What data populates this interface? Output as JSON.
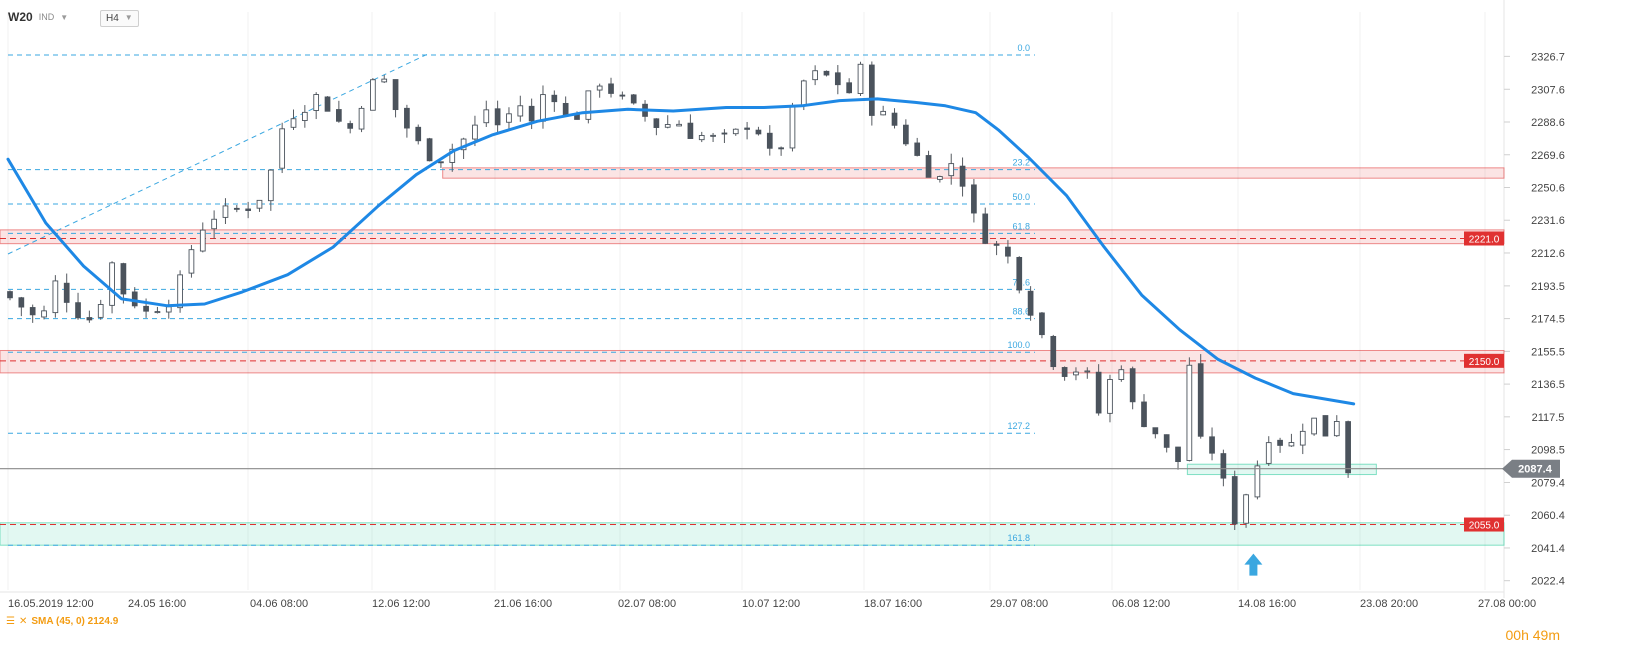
{
  "header": {
    "symbol": "W20",
    "index_tag": "IND",
    "timeframe": "H4"
  },
  "price_axis": {
    "ticks": [
      "2326.7",
      "2307.6",
      "2288.6",
      "2269.6",
      "2250.6",
      "2231.6",
      "2212.6",
      "2193.5",
      "2174.5",
      "2155.5",
      "2136.5",
      "2117.5",
      "2098.5",
      "2079.4",
      "2060.4",
      "2041.4",
      "2022.4"
    ]
  },
  "time_axis": {
    "labels": [
      "16.05.2019  12:00",
      "24.05  16:00",
      "04.06  08:00",
      "12.06  12:00",
      "21.06  16:00",
      "02.07  08:00",
      "10.07  12:00",
      "18.07  16:00",
      "29.07  08:00",
      "06.08  12:00",
      "14.08  16:00",
      "23.08  20:00",
      "27.08  00:00"
    ]
  },
  "fibonacci": {
    "levels": [
      {
        "label": "0.0",
        "price": 2327.5
      },
      {
        "label": "23.2",
        "price": 2261.0
      },
      {
        "label": "50.0",
        "price": 2241.0
      },
      {
        "label": "61.8",
        "price": 2224.0
      },
      {
        "label": "78.6",
        "price": 2191.5
      },
      {
        "label": "88.6",
        "price": 2174.5
      },
      {
        "label": "100.0",
        "price": 2155.0
      },
      {
        "label": "127.2",
        "price": 2108.0
      },
      {
        "label": "161.8",
        "price": 2043.0
      }
    ]
  },
  "key_levels": [
    {
      "label": "2221.0",
      "price": 2221.0,
      "color": "#e03131"
    },
    {
      "label": "2150.0",
      "price": 2150.0,
      "color": "#e03131"
    },
    {
      "label": "2055.0",
      "price": 2055.0,
      "color": "#e03131"
    }
  ],
  "current_price": {
    "label": "2087.4",
    "value": 2087.4
  },
  "indicator": {
    "legend": "SMA (45, 0) 2124.9"
  },
  "timer": {
    "hours": "00",
    "h": "h",
    "minutes": "49",
    "m": "m"
  },
  "chart_data": {
    "type": "candlestick",
    "title": "",
    "ylim": [
      2017,
      2342
    ],
    "x": [
      "16.05.2019 12:00",
      "24.05 16:00",
      "04.06 08:00",
      "12.06 12:00",
      "21.06 16:00",
      "02.07 08:00",
      "10.07 12:00",
      "18.07 16:00",
      "29.07 08:00",
      "06.08 12:00",
      "14.08 16:00",
      "23.08 20:00",
      "27.08 00:00"
    ],
    "close_path": [
      [
        0,
        2190
      ],
      [
        6,
        2180
      ],
      [
        10,
        2172
      ],
      [
        14,
        2195
      ],
      [
        20,
        2178
      ],
      [
        25,
        2172
      ],
      [
        28,
        2212
      ],
      [
        32,
        2190
      ],
      [
        38,
        2178
      ],
      [
        44,
        2185
      ],
      [
        48,
        2200
      ],
      [
        50,
        2215
      ],
      [
        54,
        2232
      ],
      [
        58,
        2236
      ],
      [
        62,
        2238
      ],
      [
        66,
        2240
      ],
      [
        70,
        2250
      ],
      [
        72,
        2270
      ],
      [
        74,
        2285
      ],
      [
        76,
        2292
      ],
      [
        80,
        2298
      ],
      [
        84,
        2305
      ],
      [
        88,
        2290
      ],
      [
        92,
        2285
      ],
      [
        95,
        2300
      ],
      [
        100,
        2318
      ],
      [
        104,
        2296
      ],
      [
        108,
        2282
      ],
      [
        112,
        2270
      ],
      [
        116,
        2268
      ],
      [
        120,
        2275
      ],
      [
        124,
        2282
      ],
      [
        128,
        2296
      ],
      [
        132,
        2284
      ],
      [
        136,
        2302
      ],
      [
        140,
        2288
      ],
      [
        144,
        2310
      ],
      [
        148,
        2298
      ],
      [
        150,
        2285
      ],
      [
        154,
        2300
      ],
      [
        158,
        2312
      ],
      [
        162,
        2305
      ],
      [
        166,
        2298
      ],
      [
        170,
        2292
      ],
      [
        174,
        2285
      ],
      [
        178,
        2290
      ],
      [
        182,
        2282
      ],
      [
        186,
        2280
      ],
      [
        190,
        2278
      ],
      [
        194,
        2282
      ],
      [
        198,
        2289
      ],
      [
        202,
        2278
      ],
      [
        204,
        2262
      ],
      [
        208,
        2288
      ],
      [
        212,
        2312
      ],
      [
        214,
        2316
      ],
      [
        218,
        2315
      ],
      [
        222,
        2310
      ],
      [
        224,
        2306
      ],
      [
        226,
        2316
      ],
      [
        228,
        2322
      ],
      [
        230,
        2296
      ],
      [
        234,
        2291
      ],
      [
        236,
        2287
      ],
      [
        240,
        2275
      ],
      [
        244,
        2262
      ],
      [
        248,
        2256
      ],
      [
        252,
        2268
      ],
      [
        256,
        2240
      ],
      [
        258,
        2226
      ],
      [
        262,
        2218
      ],
      [
        266,
        2210
      ],
      [
        268,
        2200
      ],
      [
        272,
        2180
      ],
      [
        276,
        2160
      ],
      [
        278,
        2150
      ],
      [
        282,
        2142
      ],
      [
        286,
        2148
      ],
      [
        290,
        2120
      ],
      [
        292,
        2135
      ],
      [
        296,
        2148
      ],
      [
        298,
        2130
      ],
      [
        300,
        2118
      ],
      [
        304,
        2112
      ],
      [
        308,
        2098
      ],
      [
        312,
        2090
      ],
      [
        314,
        2148
      ],
      [
        316,
        2095
      ],
      [
        318,
        2110
      ],
      [
        320,
        2098
      ],
      [
        322,
        2088
      ],
      [
        324,
        2070
      ],
      [
        326,
        2058
      ],
      [
        328,
        2068
      ],
      [
        332,
        2090
      ],
      [
        334,
        2105
      ],
      [
        336,
        2108
      ],
      [
        340,
        2098
      ],
      [
        344,
        2112
      ],
      [
        346,
        2118
      ],
      [
        350,
        2108
      ],
      [
        352,
        2122
      ],
      [
        354,
        2112
      ],
      [
        356,
        2087
      ]
    ],
    "sma": {
      "name": "SMA (45, 0)",
      "points": [
        [
          0,
          2267
        ],
        [
          10,
          2230
        ],
        [
          20,
          2205
        ],
        [
          30,
          2186
        ],
        [
          42,
          2182
        ],
        [
          52,
          2183
        ],
        [
          62,
          2190
        ],
        [
          74,
          2200
        ],
        [
          86,
          2216
        ],
        [
          98,
          2240
        ],
        [
          108,
          2258
        ],
        [
          118,
          2272
        ],
        [
          128,
          2281
        ],
        [
          140,
          2289
        ],
        [
          152,
          2294
        ],
        [
          164,
          2296
        ],
        [
          176,
          2295
        ],
        [
          190,
          2297
        ],
        [
          200,
          2297
        ],
        [
          210,
          2298
        ],
        [
          220,
          2301
        ],
        [
          230,
          2302
        ],
        [
          240,
          2300
        ],
        [
          248,
          2298
        ],
        [
          256,
          2294
        ],
        [
          262,
          2284
        ],
        [
          270,
          2268
        ],
        [
          280,
          2246
        ],
        [
          290,
          2216
        ],
        [
          300,
          2188
        ],
        [
          310,
          2168
        ],
        [
          320,
          2151
        ],
        [
          330,
          2140
        ],
        [
          340,
          2131
        ],
        [
          356,
          2125
        ]
      ]
    },
    "trendline": {
      "from": [
        0,
        2212
      ],
      "to": [
        111,
        2328
      ]
    },
    "zones": [
      {
        "from": 2256,
        "to": 2262,
        "start": 115,
        "color": "#e03131"
      },
      {
        "from": 2218,
        "to": 2226,
        "start": 0,
        "color": "#e03131"
      },
      {
        "from": 2143,
        "to": 2156,
        "start": 0,
        "color": "#e03131"
      },
      {
        "from": 2043,
        "to": 2056,
        "start": 0,
        "color": "#20c997"
      },
      {
        "from": 2084,
        "to": 2090,
        "start": 312,
        "end": 362,
        "color": "#20c997"
      }
    ]
  }
}
